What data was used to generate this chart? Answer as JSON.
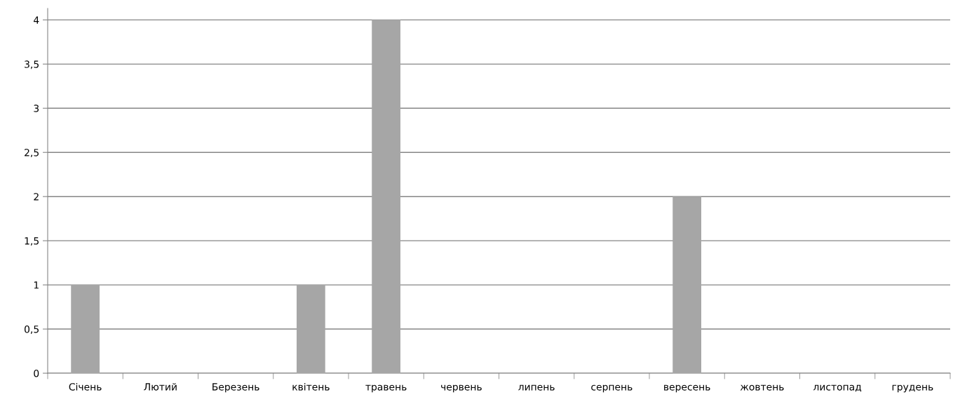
{
  "chart_data": {
    "type": "bar",
    "categories": [
      "Січень",
      "Лютий",
      "Березень",
      "квітень",
      "травень",
      "червень",
      "липень",
      "серпень",
      "вересень",
      "жовтень",
      "листопад",
      "грудень"
    ],
    "values": [
      1,
      0,
      0,
      1,
      4,
      0,
      0,
      0,
      2,
      0,
      0,
      0
    ],
    "color": "#a6a6a6",
    "ylim": [
      0,
      4.13
    ],
    "yticks": [
      0,
      {
        "value": 0.5,
        "label": "0,5"
      },
      1,
      {
        "value": 1.5,
        "label": "1,5"
      },
      2,
      {
        "value": 2.5,
        "label": "2,5"
      },
      3,
      {
        "value": 3.5,
        "label": "3,5"
      },
      4
    ],
    "grid": "y"
  }
}
